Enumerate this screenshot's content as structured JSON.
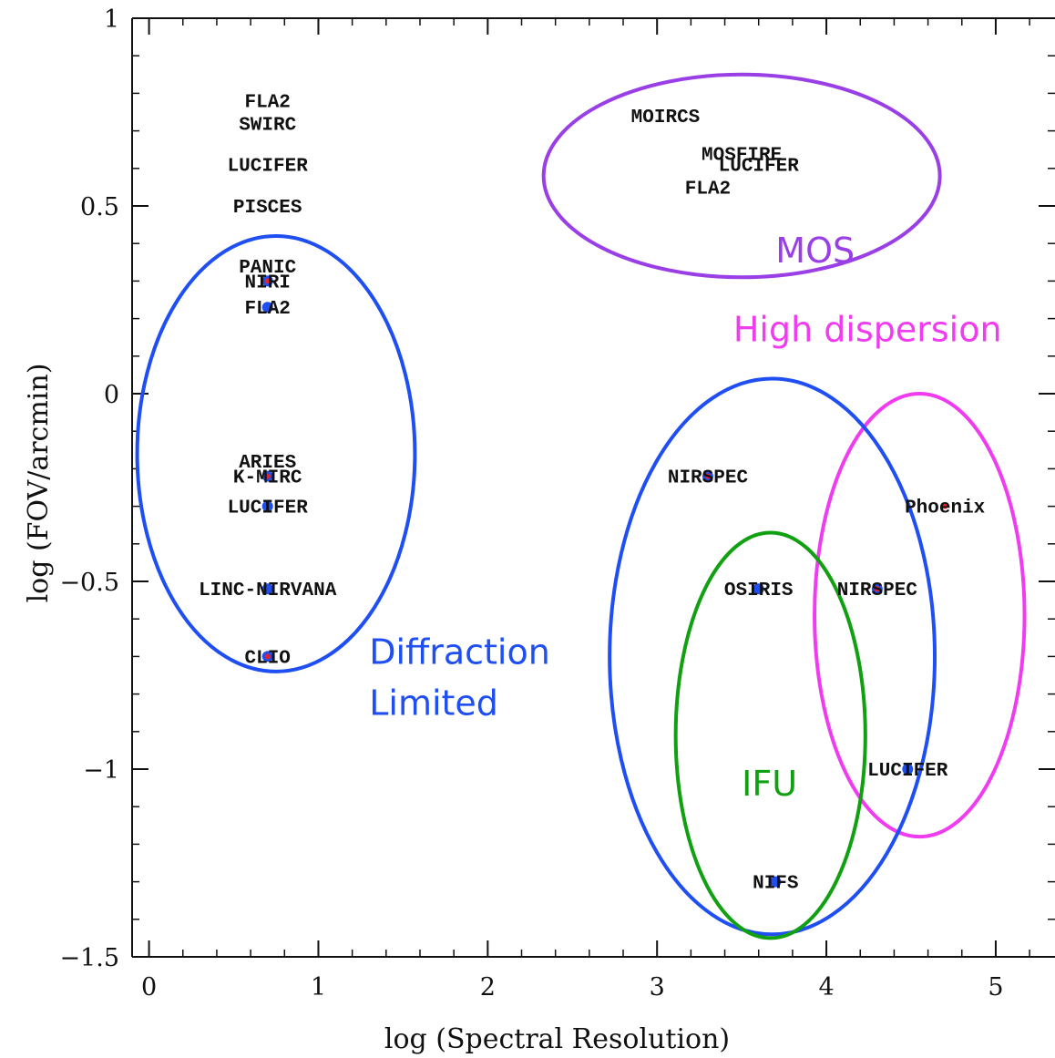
{
  "chart_data": {
    "type": "scatter",
    "xlabel": "log (Spectral Resolution)",
    "ylabel": "log (FOV/arcmin)",
    "xlim": [
      -0.1,
      5.35
    ],
    "ylim": [
      -1.5,
      1.0
    ],
    "x_ticks": [
      {
        "value": 0,
        "label": "0"
      },
      {
        "value": 1,
        "label": "1"
      },
      {
        "value": 2,
        "label": "2"
      },
      {
        "value": 3,
        "label": "3"
      },
      {
        "value": 4,
        "label": "4"
      },
      {
        "value": 5,
        "label": "5"
      }
    ],
    "y_ticks": [
      {
        "value": 1,
        "label": "1"
      },
      {
        "value": 0.5,
        "label": "0.5"
      },
      {
        "value": 0,
        "label": "0"
      },
      {
        "value": -0.5,
        "label": "−0.5"
      },
      {
        "value": -1,
        "label": "−1"
      },
      {
        "value": -1.5,
        "label": "−1.5"
      }
    ],
    "x_minor_step": 0.2,
    "y_minor_step": 0.1,
    "instruments": [
      {
        "label": "FLA2",
        "x": 0.7,
        "y": 0.78,
        "marker": "none"
      },
      {
        "label": "SWIRC",
        "x": 0.7,
        "y": 0.72,
        "marker": "none"
      },
      {
        "label": "LUCIFER",
        "x": 0.7,
        "y": 0.61,
        "marker": "none"
      },
      {
        "label": "PISCES",
        "x": 0.7,
        "y": 0.5,
        "marker": "none"
      },
      {
        "label": "PANIC",
        "x": 0.7,
        "y": 0.34,
        "marker": "none"
      },
      {
        "label": "NIRI",
        "x": 0.7,
        "y": 0.3,
        "marker": "blue-red"
      },
      {
        "label": "FLA2",
        "x": 0.7,
        "y": 0.23,
        "marker": "blue"
      },
      {
        "label": "ARIES",
        "x": 0.7,
        "y": -0.18,
        "marker": "none"
      },
      {
        "label": "K-MIRC",
        "x": 0.7,
        "y": -0.22,
        "marker": "blue-red"
      },
      {
        "label": "LUCIFER",
        "x": 0.7,
        "y": -0.3,
        "marker": "blue"
      },
      {
        "label": "LINC-NIRVANA",
        "x": 0.7,
        "y": -0.52,
        "marker": "blue"
      },
      {
        "label": "CLIO",
        "x": 0.7,
        "y": -0.7,
        "marker": "blue-red"
      },
      {
        "label": "MOIRCS",
        "x": 3.05,
        "y": 0.74,
        "marker": "none"
      },
      {
        "label": "MOSFIRE",
        "x": 3.5,
        "y": 0.64,
        "marker": "none"
      },
      {
        "label": "LUCIFER",
        "x": 3.6,
        "y": 0.61,
        "marker": "none"
      },
      {
        "label": "FLA2",
        "x": 3.3,
        "y": 0.55,
        "marker": "none"
      },
      {
        "label": "NIRSPEC",
        "x": 3.3,
        "y": -0.22,
        "marker": "blue-red"
      },
      {
        "label": "Phoenix",
        "x": 4.7,
        "y": -0.3,
        "marker": "red"
      },
      {
        "label": "OSIRIS",
        "x": 3.6,
        "y": -0.52,
        "marker": "blue"
      },
      {
        "label": "NIRSPEC",
        "x": 4.3,
        "y": -0.52,
        "marker": "blue-red"
      },
      {
        "label": "LUCIFER",
        "x": 4.48,
        "y": -1.0,
        "marker": "blue"
      },
      {
        "label": "NIFS",
        "x": 3.7,
        "y": -1.3,
        "marker": "blue"
      }
    ],
    "regions": [
      {
        "label_lines": [
          "MOS"
        ],
        "color": "#9a3fe6",
        "cx": 3.5,
        "cy": 0.58,
        "rx": 1.17,
        "ry": 0.27,
        "label_x": 3.7,
        "label_y": 0.35
      },
      {
        "label_lines": [
          "Diffraction",
          "Limited"
        ],
        "color": "#1f4ff2",
        "cx": 0.75,
        "cy": -0.16,
        "rx": 0.82,
        "ry": 0.58,
        "label_x": 1.3,
        "label_y": -0.72
      },
      {
        "label_lines": [
          "High dispersion"
        ],
        "color": "#f03cf0",
        "cx": 4.55,
        "cy": -0.59,
        "rx": 0.62,
        "ry": 0.59,
        "label_x": 3.45,
        "label_y": 0.14
      },
      {
        "label_lines": [],
        "color": "#1f4ff2",
        "cx": 3.68,
        "cy": -0.7,
        "rx": 0.96,
        "ry": 0.74,
        "label_x": 0,
        "label_y": 0
      },
      {
        "label_lines": [
          "IFU"
        ],
        "color": "#11a011",
        "cx": 3.67,
        "cy": -0.91,
        "rx": 0.56,
        "ry": 0.54,
        "label_x": 3.5,
        "label_y": -1.07
      }
    ],
    "grid": false,
    "legend": "none",
    "marker_colors": {
      "blue": "#1f4ff2",
      "red": "#e8202a"
    }
  }
}
